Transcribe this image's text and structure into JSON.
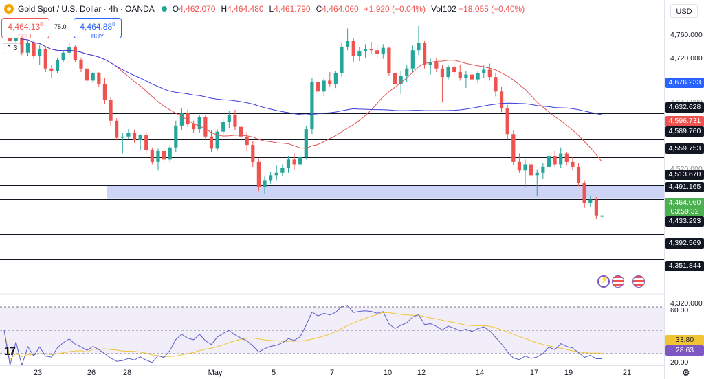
{
  "legend": {
    "symbol_icon": "gold-coin-icon",
    "title": "Gold Spot / U.S. Dollar · 4h · OANDA",
    "open_label": "O",
    "open": "4,462.070",
    "high_label": "H",
    "high": "4,464.480",
    "low_label": "L",
    "low": "4,461.790",
    "close_label": "C",
    "close": "4,464.060",
    "change": "+1.920 (+0.04%)",
    "vol_label": "Vol102",
    "vol_change": "−18.055 (−0.40%)"
  },
  "trade": {
    "sell_price": "4,464.13",
    "sell_price_sup": "0",
    "sell_label": "SELL",
    "buy_price": "4,464.88",
    "buy_price_sup": "0",
    "buy_label": "BUY",
    "spread": "75.0"
  },
  "collapse_label": "⌃ 3",
  "currency": "USD",
  "price_axis": {
    "ticks": [
      "4,760.000",
      "4,720.000",
      "4,680.000",
      "4,640.000",
      "4,600.000",
      "4,560.000",
      "4,520.000",
      "4,480.000",
      "4,440.000",
      "4,400.000",
      "4,360.000",
      "4,320.000"
    ],
    "tags": {
      "ma_blue": "4,676.233",
      "level_4632": "4,632.628",
      "ma_red": "4,596.731",
      "level_4589": "4,589.760",
      "level_4559": "4,559.753",
      "level_4513": "4,513.670",
      "level_4491": "4,491.165",
      "current": "4,464.060",
      "countdown": "03:59:32",
      "level_4433": "4,433.293",
      "level_4392": "4,392.569",
      "level_4351": "4,351.844"
    }
  },
  "rsi_axis": {
    "ticks": [
      "60.00",
      "40.00",
      "20.00"
    ],
    "rsi_ma": "33.80",
    "rsi": "28.63"
  },
  "time_axis": [
    "23",
    "26",
    "28",
    "May",
    "5",
    "7",
    "10",
    "12",
    "14",
    "17",
    "19",
    "21"
  ],
  "colors": {
    "up": "#26a69a",
    "down": "#ef5350",
    "ma_fast": "#e05454",
    "ma_slow": "#3d3ddb",
    "zone": "#c5cdf5",
    "rsi": "#5a5fc9",
    "rsi_ma": "#f0c435"
  },
  "chart_data": {
    "type": "candlestick",
    "title": "Gold Spot / U.S. Dollar · 4h · OANDA",
    "horizontal_levels": [
      4632.628,
      4589.76,
      4559.753,
      4513.67,
      4491.165,
      4433.293,
      4392.569,
      4351.844
    ],
    "support_zone": [
      4491.165,
      4513.67
    ],
    "moving_average_fast_last": 4596.731,
    "moving_average_slow_last": 4676.233,
    "last_close": 4464.06,
    "candles": [
      [
        4772,
        4774,
        4765,
        4770
      ],
      [
        4770,
        4772,
        4740,
        4752
      ],
      [
        4752,
        4768,
        4748,
        4764
      ],
      [
        4764,
        4768,
        4728,
        4732
      ],
      [
        4732,
        4752,
        4726,
        4748
      ],
      [
        4748,
        4752,
        4722,
        4726
      ],
      [
        4726,
        4744,
        4712,
        4738
      ],
      [
        4738,
        4742,
        4700,
        4706
      ],
      [
        4706,
        4712,
        4690,
        4702
      ],
      [
        4702,
        4724,
        4698,
        4720
      ],
      [
        4720,
        4736,
        4716,
        4732
      ],
      [
        4732,
        4748,
        4728,
        4742
      ],
      [
        4742,
        4744,
        4716,
        4720
      ],
      [
        4720,
        4724,
        4700,
        4706
      ],
      [
        4706,
        4712,
        4680,
        4686
      ],
      [
        4686,
        4700,
        4682,
        4698
      ],
      [
        4698,
        4700,
        4676,
        4680
      ],
      [
        4680,
        4690,
        4648,
        4654
      ],
      [
        4654,
        4658,
        4612,
        4620
      ],
      [
        4620,
        4624,
        4588,
        4592
      ],
      [
        4592,
        4600,
        4566,
        4594
      ],
      [
        4594,
        4606,
        4590,
        4600
      ],
      [
        4600,
        4604,
        4584,
        4588
      ],
      [
        4588,
        4598,
        4572,
        4596
      ],
      [
        4596,
        4602,
        4566,
        4572
      ],
      [
        4572,
        4576,
        4548,
        4552
      ],
      [
        4552,
        4574,
        4538,
        4570
      ],
      [
        4570,
        4584,
        4548,
        4556
      ],
      [
        4556,
        4580,
        4552,
        4576
      ],
      [
        4576,
        4620,
        4568,
        4612
      ],
      [
        4612,
        4640,
        4604,
        4632
      ],
      [
        4632,
        4638,
        4610,
        4614
      ],
      [
        4614,
        4620,
        4600,
        4606
      ],
      [
        4606,
        4630,
        4600,
        4626
      ],
      [
        4626,
        4630,
        4588,
        4594
      ],
      [
        4594,
        4604,
        4568,
        4574
      ],
      [
        4574,
        4606,
        4570,
        4602
      ],
      [
        4602,
        4622,
        4596,
        4618
      ],
      [
        4618,
        4636,
        4608,
        4630
      ],
      [
        4630,
        4638,
        4604,
        4610
      ],
      [
        4610,
        4614,
        4586,
        4594
      ],
      [
        4594,
        4602,
        4570,
        4580
      ],
      [
        4580,
        4586,
        4544,
        4552
      ],
      [
        4552,
        4558,
        4504,
        4510
      ],
      [
        4510,
        4528,
        4500,
        4522
      ],
      [
        4522,
        4536,
        4516,
        4530
      ],
      [
        4530,
        4546,
        4522,
        4534
      ],
      [
        4534,
        4548,
        4528,
        4542
      ],
      [
        4542,
        4562,
        4534,
        4556
      ],
      [
        4556,
        4566,
        4540,
        4548
      ],
      [
        4548,
        4564,
        4544,
        4560
      ],
      [
        4560,
        4612,
        4556,
        4606
      ],
      [
        4606,
        4690,
        4598,
        4684
      ],
      [
        4684,
        4702,
        4662,
        4668
      ],
      [
        4668,
        4690,
        4660,
        4686
      ],
      [
        4686,
        4700,
        4676,
        4680
      ],
      [
        4680,
        4702,
        4674,
        4698
      ],
      [
        4698,
        4748,
        4692,
        4742
      ],
      [
        4742,
        4772,
        4736,
        4752
      ],
      [
        4752,
        4756,
        4716,
        4726
      ],
      [
        4726,
        4742,
        4718,
        4734
      ],
      [
        4734,
        4746,
        4724,
        4738
      ],
      [
        4738,
        4750,
        4730,
        4736
      ],
      [
        4736,
        4744,
        4724,
        4730
      ],
      [
        4730,
        4746,
        4722,
        4740
      ],
      [
        4740,
        4742,
        4694,
        4698
      ],
      [
        4698,
        4700,
        4654,
        4680
      ],
      [
        4680,
        4702,
        4664,
        4694
      ],
      [
        4694,
        4712,
        4684,
        4706
      ],
      [
        4706,
        4744,
        4700,
        4736
      ],
      [
        4736,
        4776,
        4728,
        4748
      ],
      [
        4748,
        4752,
        4706,
        4712
      ],
      [
        4712,
        4722,
        4696,
        4716
      ],
      [
        4716,
        4724,
        4700,
        4706
      ],
      [
        4706,
        4712,
        4650,
        4692
      ],
      [
        4692,
        4712,
        4688,
        4708
      ],
      [
        4708,
        4718,
        4694,
        4700
      ],
      [
        4700,
        4712,
        4686,
        4690
      ],
      [
        4690,
        4702,
        4674,
        4696
      ],
      [
        4696,
        4704,
        4684,
        4688
      ],
      [
        4688,
        4702,
        4682,
        4698
      ],
      [
        4698,
        4712,
        4690,
        4704
      ],
      [
        4704,
        4714,
        4686,
        4692
      ],
      [
        4692,
        4698,
        4660,
        4668
      ],
      [
        4668,
        4676,
        4634,
        4640
      ],
      [
        4640,
        4646,
        4590,
        4598
      ],
      [
        4598,
        4604,
        4546,
        4552
      ],
      [
        4552,
        4566,
        4534,
        4538
      ],
      [
        4538,
        4556,
        4510,
        4548
      ],
      [
        4548,
        4552,
        4524,
        4530
      ],
      [
        4530,
        4540,
        4496,
        4534
      ],
      [
        4534,
        4550,
        4524,
        4544
      ],
      [
        4544,
        4566,
        4538,
        4562
      ],
      [
        4562,
        4570,
        4544,
        4548
      ],
      [
        4548,
        4576,
        4542,
        4566
      ],
      [
        4566,
        4568,
        4546,
        4552
      ],
      [
        4552,
        4560,
        4538,
        4544
      ],
      [
        4544,
        4550,
        4512,
        4518
      ],
      [
        4518,
        4522,
        4476,
        4484
      ],
      [
        4484,
        4496,
        4478,
        4490
      ],
      [
        4490,
        4494,
        4458,
        4464
      ],
      [
        4462,
        4464,
        4461,
        4464
      ]
    ],
    "rsi_range": [
      20,
      80
    ],
    "rsi_levels": [
      70,
      50,
      30
    ],
    "rsi_last": 28.63,
    "rsi_ma_last": 33.8
  }
}
